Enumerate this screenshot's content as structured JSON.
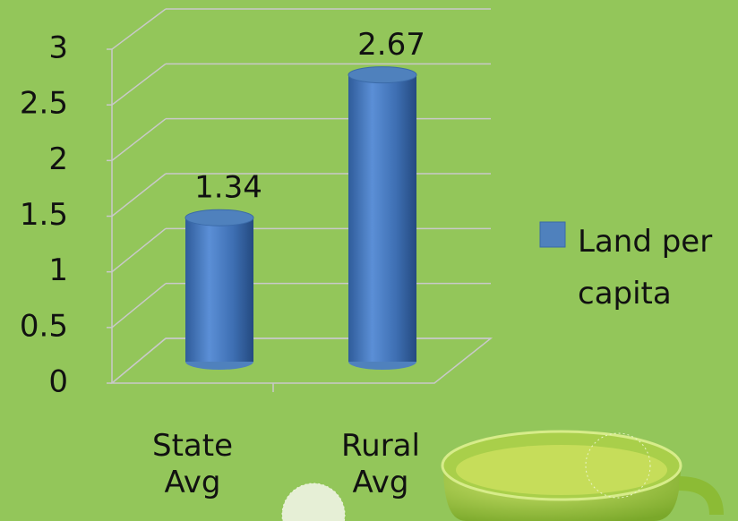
{
  "chart_data": {
    "type": "bar",
    "categories": [
      "State Avg",
      "Rural Avg"
    ],
    "series": [
      {
        "name": "Land per capita",
        "color": "#4f81bd",
        "values": [
          1.34,
          2.67
        ]
      }
    ],
    "ylim": [
      0,
      3
    ],
    "yticks": [
      0,
      0.5,
      1,
      1.5,
      2,
      2.5,
      3
    ],
    "grid": true,
    "legend": "right"
  }
}
